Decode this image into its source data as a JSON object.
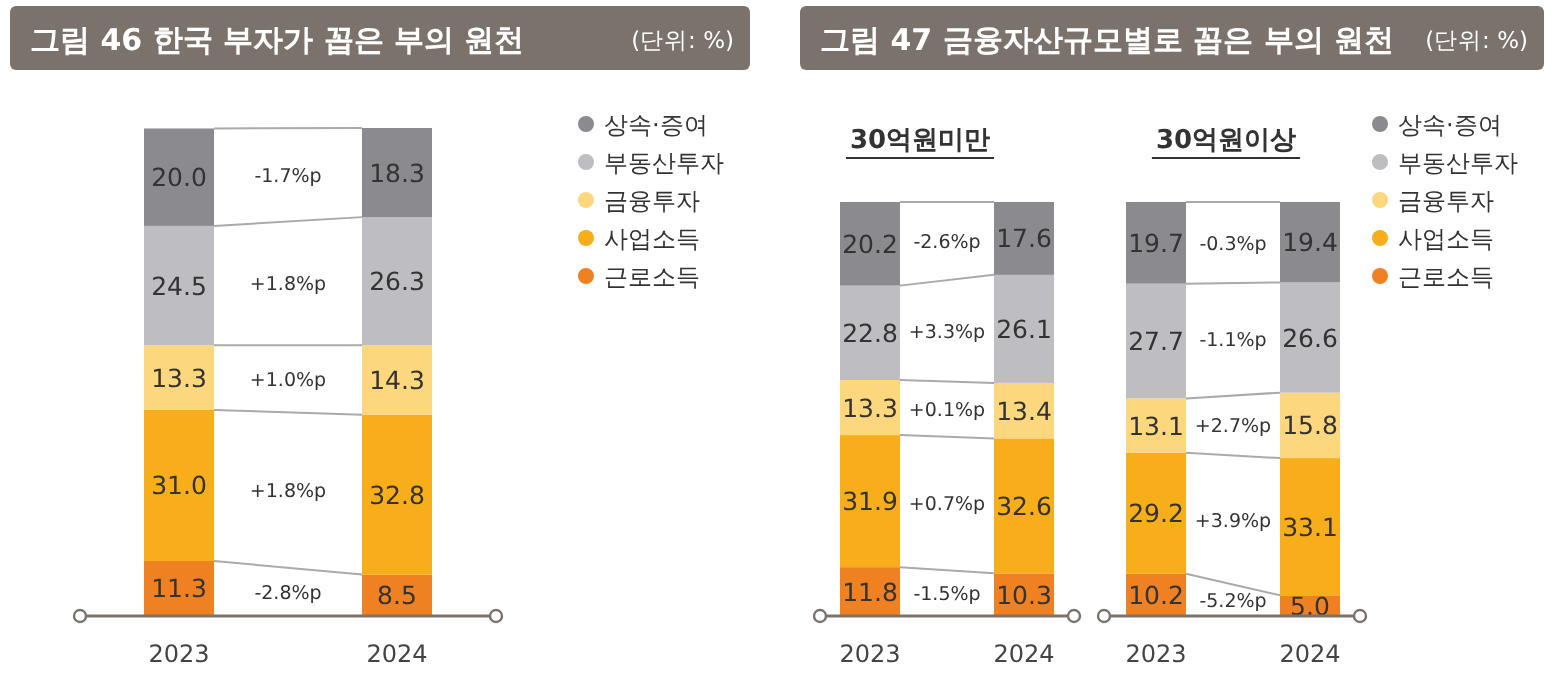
{
  "chart_data": [
    {
      "type": "bar",
      "stacked": true,
      "tick_labels": "x",
      "legend": "top right",
      "title": "그림 46  한국 부자가 꼽은 부의 원천",
      "categories": [
        "2023",
        "2024"
      ],
      "annotations": [
        "(단위: %)",
        "-2.8%p",
        "+1.8%p",
        "+1.0%p",
        "+1.8%p",
        "-1.7%p"
      ],
      "series": [
        {
          "name": "근로소득",
          "color": "#f08122",
          "values": [
            11.3,
            8.5
          ],
          "value_labels": [
            "11.3",
            "8.5"
          ]
        },
        {
          "name": "사업소득",
          "color": "#f8ae1a",
          "values": [
            31.0,
            32.8
          ],
          "value_labels": [
            "31.0",
            "32.8"
          ]
        },
        {
          "name": "금융투자",
          "color": "#fdd77e",
          "values": [
            13.3,
            14.3
          ],
          "value_labels": [
            "13.3",
            "14.3"
          ]
        },
        {
          "name": "부동산투자",
          "color": "#bdbdc2",
          "values": [
            24.5,
            26.3
          ],
          "value_labels": [
            "24.5",
            "26.3"
          ]
        },
        {
          "name": "상속·증여",
          "color": "#8a8a8f",
          "values": [
            20.0,
            18.3
          ],
          "value_labels": [
            "20.0",
            "18.3"
          ]
        }
      ]
    },
    {
      "type": "bar",
      "stacked": true,
      "tick_labels": "x",
      "title": "그림 47  금융자산규모별로 꼽은 부의 원천",
      "subtitle": "30억원미만",
      "categories": [
        "2023",
        "2024"
      ],
      "annotations": [
        "(단위: %)",
        "-1.5%p",
        "+0.7%p",
        "+0.1%p",
        "+3.3%p",
        "-2.6%p"
      ],
      "series": [
        {
          "color": "#f08122",
          "values": [
            11.8,
            10.3
          ],
          "value_labels": [
            "11.8",
            "10.3"
          ]
        },
        {
          "color": "#f8ae1a",
          "values": [
            31.9,
            32.6
          ],
          "value_labels": [
            "31.9",
            "32.6"
          ]
        },
        {
          "color": "#fdd77e",
          "values": [
            13.3,
            13.4
          ],
          "value_labels": [
            "13.3",
            "13.4"
          ]
        },
        {
          "color": "#bdbdc2",
          "values": [
            22.8,
            26.1
          ],
          "value_labels": [
            "22.8",
            "26.1"
          ]
        },
        {
          "color": "#8a8a8f",
          "values": [
            20.2,
            17.6
          ],
          "value_labels": [
            "20.2",
            "17.6"
          ]
        }
      ]
    },
    {
      "type": "bar",
      "stacked": true,
      "tick_labels": "x",
      "legend": "top right",
      "subtitle": "30억원이상",
      "categories": [
        "2023",
        "2024"
      ],
      "annotations": [
        "-5.2%p",
        "+3.9%p",
        "+2.7%p",
        "-1.1%p",
        "-0.3%p"
      ],
      "series": [
        {
          "name": "근로소득",
          "color": "#f08122",
          "values": [
            10.2,
            5.0
          ],
          "value_labels": [
            "10.2",
            "5.0"
          ]
        },
        {
          "name": "사업소득",
          "color": "#f8ae1a",
          "values": [
            29.2,
            33.1
          ],
          "value_labels": [
            "29.2",
            "33.1"
          ]
        },
        {
          "name": "금융투자",
          "color": "#fdd77e",
          "values": [
            13.1,
            15.8
          ],
          "value_labels": [
            "13.1",
            "15.8"
          ]
        },
        {
          "name": "부동산투자",
          "color": "#bdbdc2",
          "values": [
            27.7,
            26.6
          ],
          "value_labels": [
            "27.7",
            "26.6"
          ]
        },
        {
          "name": "상속·증여",
          "color": "#8a8a8f",
          "values": [
            19.7,
            19.4
          ],
          "value_labels": [
            "19.7",
            "19.4"
          ]
        }
      ]
    }
  ]
}
